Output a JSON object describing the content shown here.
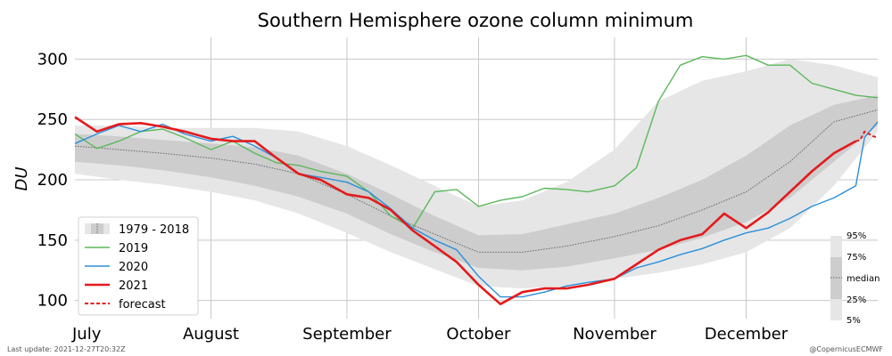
{
  "chart_data": {
    "type": "line",
    "title": "Southern Hemisphere ozone column minimum",
    "ylabel": "DU",
    "xlabel": "",
    "ylim": [
      85,
      318
    ],
    "xlim": [
      "07-01",
      "12-31"
    ],
    "y_ticks": [
      100,
      150,
      200,
      250,
      300
    ],
    "month_ticks": [
      {
        "label": "July",
        "date": "07-01"
      },
      {
        "label": "August",
        "date": "08-01"
      },
      {
        "label": "September",
        "date": "09-01"
      },
      {
        "label": "October",
        "date": "10-01"
      },
      {
        "label": "November",
        "date": "11-01"
      },
      {
        "label": "December",
        "date": "12-01"
      }
    ],
    "grid": true,
    "legend_position": "bottom-left",
    "climatology": {
      "name": "1979 - 2018",
      "x": [
        "07-01",
        "07-11",
        "07-21",
        "08-01",
        "08-11",
        "08-21",
        "09-01",
        "09-11",
        "09-21",
        "10-01",
        "10-11",
        "10-21",
        "11-01",
        "11-11",
        "11-21",
        "12-01",
        "12-11",
        "12-21",
        "12-31"
      ],
      "p5": [
        205,
        200,
        196,
        190,
        183,
        172,
        156,
        140,
        126,
        112,
        110,
        112,
        118,
        123,
        130,
        140,
        160,
        195,
        240
      ],
      "p25": [
        215,
        212,
        208,
        202,
        195,
        186,
        172,
        155,
        140,
        127,
        125,
        128,
        135,
        142,
        152,
        165,
        185,
        215,
        245
      ],
      "median": [
        228,
        225,
        222,
        218,
        213,
        205,
        188,
        170,
        155,
        140,
        140,
        145,
        153,
        162,
        175,
        190,
        215,
        248,
        258
      ],
      "p75": [
        238,
        236,
        233,
        230,
        227,
        220,
        205,
        188,
        170,
        154,
        155,
        163,
        172,
        185,
        200,
        220,
        245,
        262,
        270
      ],
      "p95": [
        245,
        245,
        243,
        243,
        243,
        240,
        228,
        212,
        195,
        178,
        183,
        198,
        225,
        265,
        282,
        290,
        300,
        295,
        285
      ]
    },
    "series": [
      {
        "name": "2019",
        "color": "#5cb85c",
        "x": [
          "07-01",
          "07-06",
          "07-11",
          "07-16",
          "07-21",
          "07-26",
          "08-01",
          "08-06",
          "08-11",
          "08-16",
          "08-21",
          "08-26",
          "09-01",
          "09-06",
          "09-11",
          "09-16",
          "09-21",
          "09-26",
          "10-01",
          "10-06",
          "10-11",
          "10-16",
          "10-21",
          "10-26",
          "11-01",
          "11-06",
          "11-11",
          "11-16",
          "11-21",
          "11-26",
          "12-01",
          "12-06",
          "12-11",
          "12-16",
          "12-21",
          "12-26",
          "12-31"
        ],
        "values": [
          238,
          226,
          232,
          240,
          242,
          235,
          225,
          232,
          222,
          214,
          212,
          207,
          203,
          190,
          170,
          160,
          190,
          192,
          178,
          183,
          186,
          193,
          192,
          190,
          195,
          210,
          265,
          295,
          302,
          300,
          303,
          295,
          295,
          280,
          275,
          270,
          268
        ]
      },
      {
        "name": "2020",
        "color": "#2a8fdb",
        "x": [
          "07-01",
          "07-06",
          "07-11",
          "07-16",
          "07-21",
          "07-26",
          "08-01",
          "08-06",
          "08-11",
          "08-16",
          "08-21",
          "08-26",
          "09-01",
          "09-06",
          "09-11",
          "09-16",
          "09-21",
          "09-26",
          "10-01",
          "10-06",
          "10-11",
          "10-16",
          "10-21",
          "10-26",
          "11-01",
          "11-06",
          "11-11",
          "11-16",
          "11-21",
          "11-26",
          "12-01",
          "12-06",
          "12-11",
          "12-16",
          "12-21",
          "12-26",
          "12-28",
          "12-31"
        ],
        "values": [
          230,
          238,
          245,
          240,
          246,
          238,
          232,
          236,
          228,
          218,
          205,
          202,
          198,
          190,
          176,
          160,
          150,
          142,
          120,
          103,
          103,
          107,
          112,
          115,
          118,
          127,
          132,
          138,
          143,
          150,
          156,
          160,
          168,
          178,
          185,
          195,
          235,
          248
        ]
      },
      {
        "name": "2021",
        "color": "#e41a1c",
        "x": [
          "07-01",
          "07-06",
          "07-11",
          "07-16",
          "07-21",
          "07-26",
          "08-01",
          "08-06",
          "08-11",
          "08-16",
          "08-21",
          "08-26",
          "09-01",
          "09-06",
          "09-11",
          "09-16",
          "09-21",
          "09-26",
          "10-01",
          "10-06",
          "10-11",
          "10-16",
          "10-21",
          "10-26",
          "11-01",
          "11-06",
          "11-11",
          "11-16",
          "11-21",
          "11-26",
          "12-01",
          "12-06",
          "12-11",
          "12-16",
          "12-21",
          "12-26"
        ],
        "values": [
          252,
          240,
          246,
          247,
          244,
          240,
          234,
          232,
          232,
          218,
          205,
          200,
          188,
          185,
          175,
          158,
          145,
          132,
          113,
          97,
          107,
          110,
          110,
          113,
          118,
          130,
          142,
          150,
          155,
          172,
          160,
          173,
          190,
          207,
          222,
          232
        ]
      },
      {
        "name": "forecast",
        "color": "#e41a1c",
        "dashed": true,
        "x": [
          "12-26",
          "12-27",
          "12-28",
          "12-29",
          "12-30",
          "12-31"
        ],
        "values": [
          232,
          233,
          240,
          238,
          236,
          235
        ]
      }
    ],
    "percentile_labels": [
      "95%",
      "75%",
      "median",
      "25%",
      "5%"
    ]
  },
  "footer": {
    "last_update": "Last update: 2021-12-27T20:32Z",
    "credit": "@CopernicusECMWF"
  }
}
